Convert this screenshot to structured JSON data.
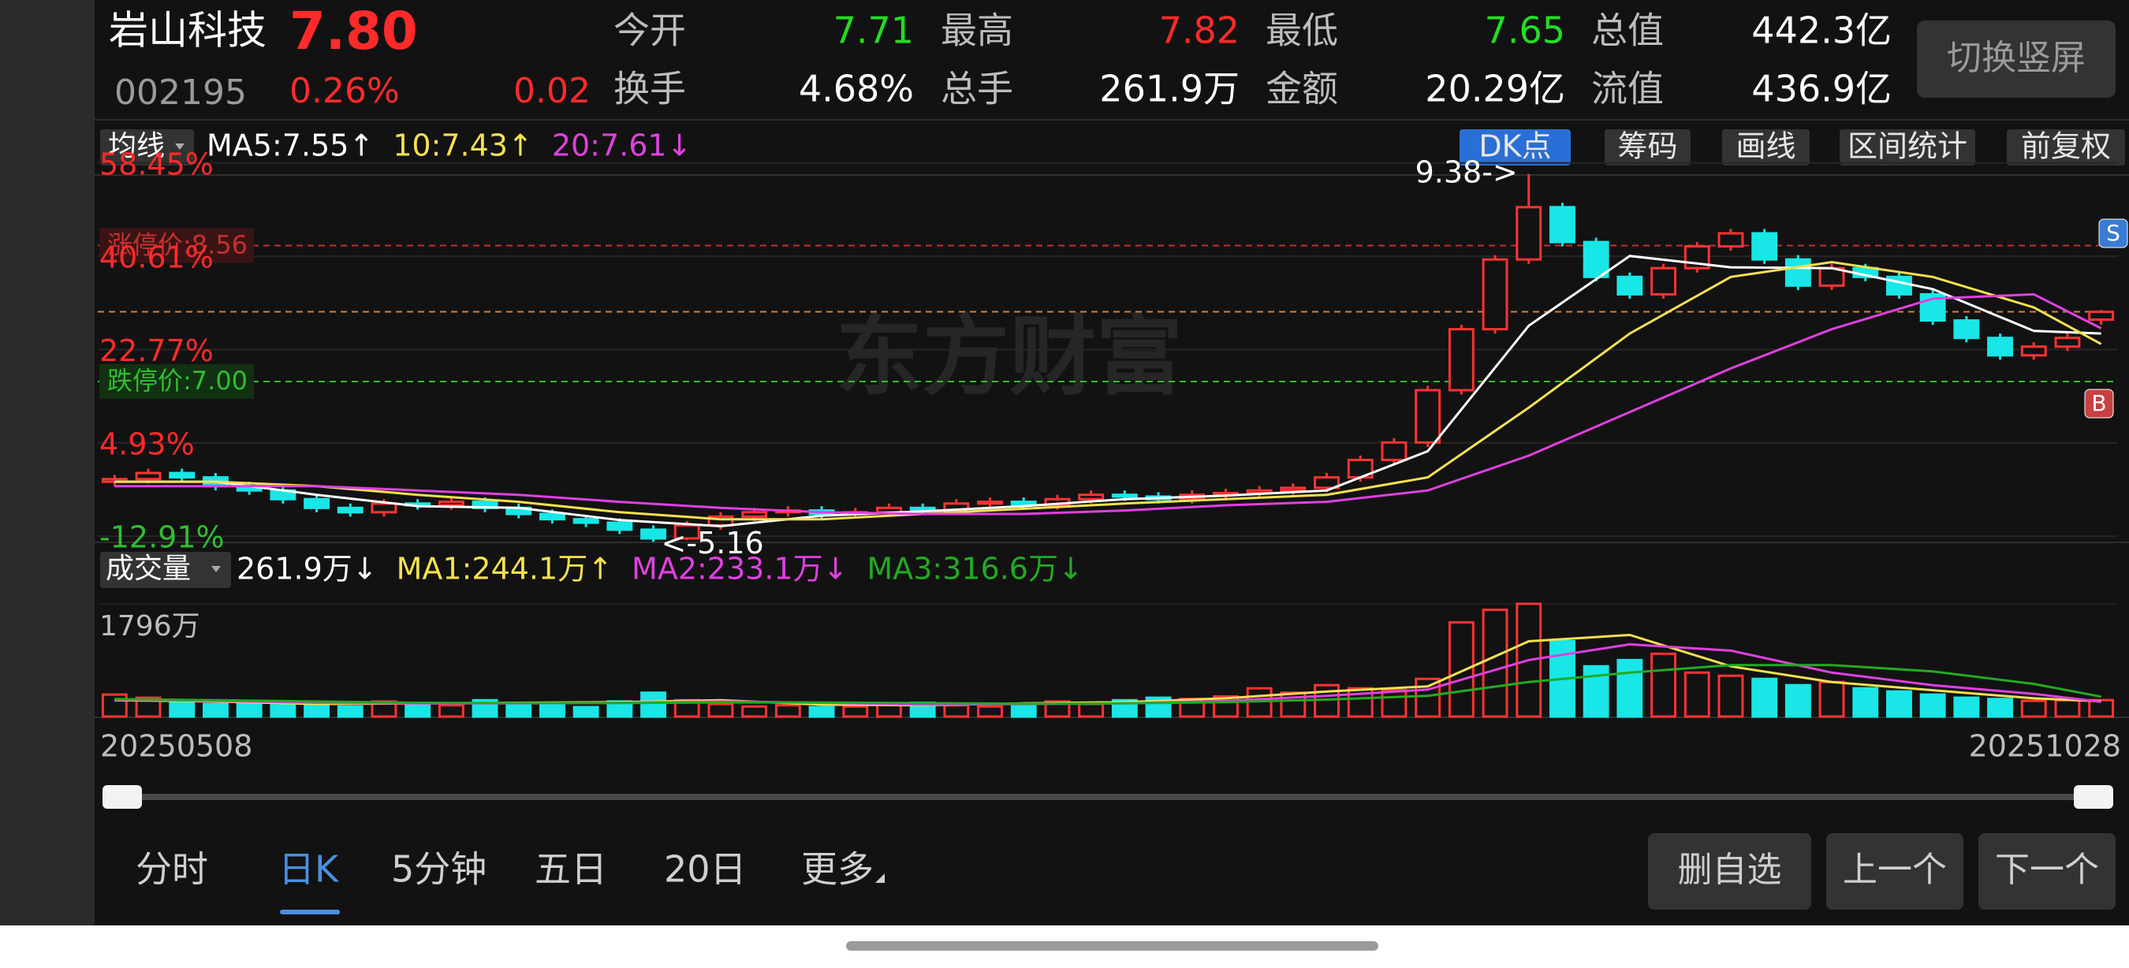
{
  "header": {
    "name": "岩山科技",
    "price": "7.80",
    "code": "002195",
    "change_pct": "0.26%",
    "change": "0.02",
    "stats": [
      [
        {
          "label": "今开",
          "value": "7.71"
        },
        {
          "label": "最高",
          "value": "7.82"
        },
        {
          "label": "最低",
          "value": "7.65"
        },
        {
          "label": "总值",
          "value": "442.3亿"
        }
      ],
      [
        {
          "label": "换手",
          "value": "4.68%"
        },
        {
          "label": "总手",
          "value": "261.9万"
        },
        {
          "label": "金额",
          "value": "20.29亿"
        },
        {
          "label": "流值",
          "value": "436.9亿"
        }
      ]
    ],
    "button": "切换竖屏"
  },
  "toolbar": {
    "ma_button": "均线",
    "buttons": [
      "DK点",
      "筹码",
      "画线",
      "区间统计",
      "前复权"
    ]
  },
  "watermark": "东方财富",
  "chart_data": [
    {
      "type": "candlestick",
      "open": [
        5.85,
        5.88,
        5.95,
        5.9,
        5.8,
        5.75,
        5.65,
        5.55,
        5.5,
        5.6,
        5.58,
        5.62,
        5.55,
        5.48,
        5.42,
        5.38,
        5.3,
        5.2,
        5.35,
        5.45,
        5.5,
        5.52,
        5.48,
        5.5,
        5.55,
        5.52,
        5.6,
        5.62,
        5.58,
        5.65,
        5.7,
        5.68,
        5.65,
        5.7,
        5.72,
        5.75,
        5.78,
        5.9,
        6.1,
        6.3,
        6.9,
        7.6,
        8.4,
        9.0,
        8.6,
        8.2,
        8.0,
        8.3,
        8.55,
        8.7,
        8.4,
        8.1,
        8.3,
        8.2,
        8.0,
        7.7,
        7.5,
        7.3,
        7.4,
        7.71
      ],
      "high": [
        5.93,
        6.0,
        6.0,
        5.95,
        5.85,
        5.8,
        5.7,
        5.6,
        5.65,
        5.65,
        5.67,
        5.67,
        5.6,
        5.53,
        5.47,
        5.43,
        5.35,
        5.4,
        5.5,
        5.55,
        5.57,
        5.57,
        5.55,
        5.6,
        5.6,
        5.65,
        5.67,
        5.67,
        5.7,
        5.75,
        5.75,
        5.73,
        5.75,
        5.77,
        5.8,
        5.83,
        5.95,
        6.15,
        6.35,
        6.95,
        7.65,
        8.45,
        9.38,
        9.05,
        8.65,
        8.25,
        8.35,
        8.6,
        8.75,
        8.75,
        8.45,
        8.35,
        8.35,
        8.25,
        8.05,
        7.75,
        7.55,
        7.45,
        7.55,
        7.82
      ],
      "low": [
        5.8,
        5.83,
        5.85,
        5.75,
        5.7,
        5.6,
        5.5,
        5.45,
        5.45,
        5.53,
        5.53,
        5.5,
        5.43,
        5.37,
        5.33,
        5.25,
        5.16,
        5.18,
        5.3,
        5.4,
        5.45,
        5.43,
        5.43,
        5.45,
        5.47,
        5.47,
        5.55,
        5.53,
        5.53,
        5.6,
        5.63,
        5.6,
        5.6,
        5.65,
        5.67,
        5.7,
        5.73,
        5.85,
        6.05,
        6.25,
        6.85,
        7.55,
        8.35,
        8.55,
        8.15,
        7.95,
        7.95,
        8.25,
        8.5,
        8.35,
        8.05,
        8.05,
        8.15,
        7.95,
        7.65,
        7.45,
        7.25,
        7.25,
        7.35,
        7.65
      ],
      "close": [
        5.88,
        5.95,
        5.9,
        5.8,
        5.75,
        5.65,
        5.55,
        5.5,
        5.6,
        5.58,
        5.62,
        5.55,
        5.48,
        5.42,
        5.38,
        5.3,
        5.2,
        5.35,
        5.45,
        5.5,
        5.52,
        5.48,
        5.5,
        5.55,
        5.52,
        5.6,
        5.62,
        5.58,
        5.65,
        5.7,
        5.68,
        5.65,
        5.7,
        5.72,
        5.75,
        5.78,
        5.9,
        6.1,
        6.3,
        6.9,
        7.6,
        8.4,
        9.0,
        8.6,
        8.2,
        8.0,
        8.3,
        8.55,
        8.7,
        8.4,
        8.1,
        8.3,
        8.2,
        8.0,
        7.7,
        7.5,
        7.3,
        7.4,
        7.5,
        7.8
      ],
      "up_color": "#ff3333",
      "down_color": "#19e6e6",
      "ylim": [
        5.2,
        9.55
      ],
      "yticks": [
        {
          "value": 9.507,
          "label": "58.45%"
        },
        {
          "value": 8.436,
          "label": "40.61%"
        },
        {
          "value": 7.366,
          "label": "22.77%"
        },
        {
          "value": 6.296,
          "label": "4.93%"
        },
        {
          "value": 5.225,
          "label": "-12.91%"
        }
      ],
      "limit_up": {
        "value": 8.56,
        "label": "涨停价:8.56"
      },
      "limit_down": {
        "value": 7.0,
        "label": "跌停价:7.00"
      },
      "annotations": [
        {
          "value": 9.38,
          "label": "9.38->"
        },
        {
          "value": 5.16,
          "label": "<-5.16"
        }
      ],
      "signals": [
        "S",
        "B"
      ],
      "ma_x": [
        0,
        3,
        6,
        9,
        12,
        15,
        18,
        21,
        24,
        27,
        30,
        33,
        36,
        39,
        42,
        45,
        48,
        51,
        54,
        57,
        59
      ],
      "series": [
        {
          "name": "MA5:7.55↑",
          "color": "#ffffff",
          "values": [
            5.85,
            5.85,
            5.7,
            5.57,
            5.55,
            5.41,
            5.34,
            5.46,
            5.51,
            5.57,
            5.65,
            5.69,
            5.75,
            6.2,
            7.64,
            8.44,
            8.31,
            8.3,
            8.06,
            7.58,
            7.55
          ]
        },
        {
          "name": "10:7.43↑",
          "color": "#f5e050",
          "values": [
            5.85,
            5.85,
            5.8,
            5.7,
            5.62,
            5.5,
            5.42,
            5.42,
            5.48,
            5.54,
            5.6,
            5.65,
            5.7,
            5.9,
            6.7,
            7.55,
            8.2,
            8.37,
            8.2,
            7.85,
            7.43
          ]
        },
        {
          "name": "20:7.61↓",
          "color": "#e040e0",
          "values": [
            5.8,
            5.8,
            5.8,
            5.75,
            5.7,
            5.62,
            5.55,
            5.5,
            5.48,
            5.48,
            5.52,
            5.58,
            5.62,
            5.75,
            6.15,
            6.65,
            7.15,
            7.6,
            7.95,
            8.0,
            7.61
          ]
        }
      ]
    },
    {
      "type": "bar",
      "title": "成交量",
      "current": "261.9万↓",
      "values": [
        350,
        300,
        250,
        200,
        220,
        180,
        200,
        160,
        240,
        200,
        180,
        260,
        220,
        180,
        150,
        240,
        380,
        260,
        200,
        160,
        180,
        150,
        160,
        200,
        220,
        180,
        160,
        200,
        240,
        200,
        260,
        300,
        280,
        320,
        450,
        380,
        500,
        450,
        420,
        600,
        1500,
        1700,
        1796,
        1200,
        800,
        900,
        1000,
        700,
        650,
        600,
        500,
        550,
        450,
        400,
        350,
        300,
        280,
        250,
        260,
        261.9
      ],
      "ylim": [
        0,
        1796
      ],
      "yticks": [
        {
          "value": 1796,
          "label": "1796万"
        }
      ],
      "x_labels": [
        "20250508",
        "20251028"
      ],
      "ma_x": [
        0,
        3,
        6,
        9,
        12,
        15,
        18,
        21,
        24,
        27,
        30,
        33,
        36,
        39,
        42,
        45,
        48,
        51,
        54,
        57,
        59
      ],
      "series": [
        {
          "name": "MA1:244.1万↑",
          "color": "#f5e050",
          "values": [
            260,
            240,
            200,
            210,
            220,
            230,
            260,
            190,
            180,
            210,
            230,
            290,
            400,
            480,
            1200,
            1300,
            800,
            550,
            420,
            290,
            244.1
          ]
        },
        {
          "name": "MA2:233.1万↓",
          "color": "#e040e0",
          "values": [
            270,
            250,
            220,
            210,
            210,
            220,
            240,
            220,
            190,
            200,
            210,
            250,
            330,
            430,
            900,
            1150,
            1050,
            700,
            500,
            360,
            233.1
          ]
        },
        {
          "name": "MA3:316.6万↓",
          "color": "#22aa22",
          "values": [
            280,
            260,
            240,
            220,
            215,
            215,
            225,
            225,
            215,
            205,
            210,
            230,
            270,
            330,
            550,
            700,
            820,
            820,
            720,
            520,
            316.6
          ]
        }
      ]
    }
  ],
  "tabs": {
    "items": [
      "分时",
      "日K",
      "5分钟",
      "五日",
      "20日",
      "更多"
    ],
    "active": 1
  },
  "actions": [
    "删自选",
    "上一个",
    "下一个"
  ]
}
